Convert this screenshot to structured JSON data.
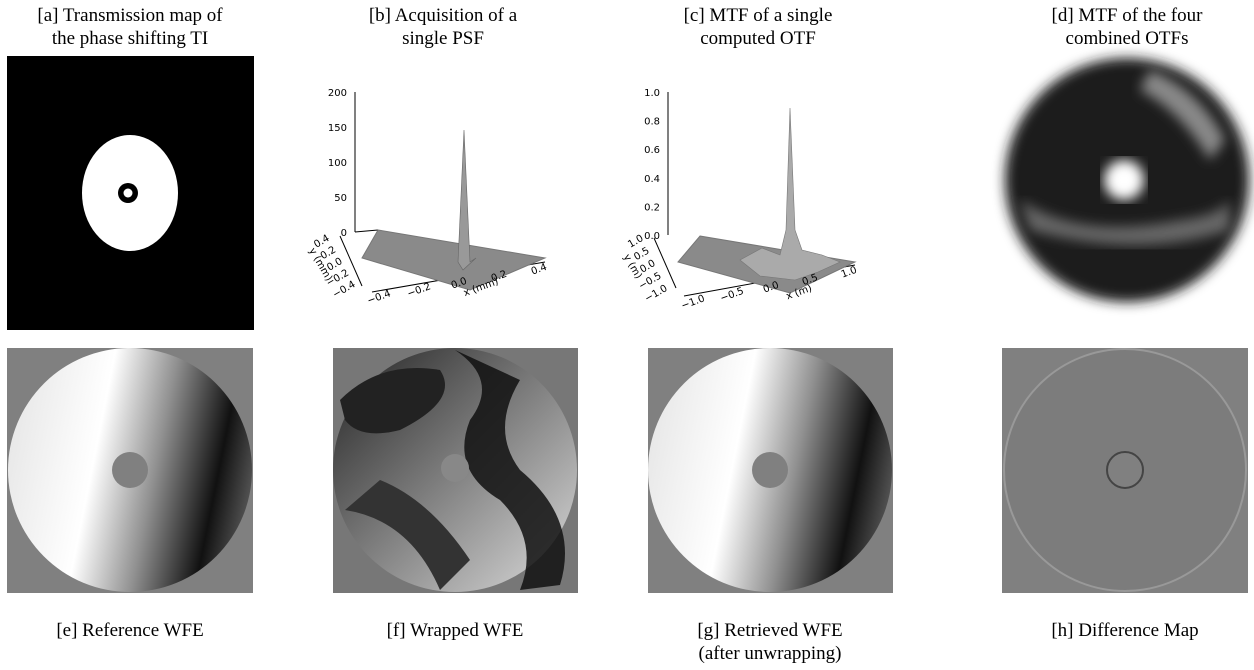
{
  "panels": [
    {
      "caption": [
        "[a] Transmission map of",
        "the phase shifting TI"
      ]
    },
    {
      "caption": [
        "[b] Acquisition of a",
        "single PSF"
      ],
      "plot": {
        "z_ticks": [
          "200",
          "150",
          "100",
          "50",
          "0"
        ],
        "y_ticks": [
          "0.4",
          "0.2",
          "0.0",
          "−0.2",
          "−0.4"
        ],
        "x_ticks": [
          "−0.4",
          "−0.2",
          "0.0",
          "0.2",
          "0.4"
        ],
        "x_label": "x (mm)",
        "y_label": "y (mm)"
      }
    },
    {
      "caption": [
        "[c] MTF of a single",
        "computed OTF"
      ],
      "plot": {
        "z_ticks": [
          "1.0",
          "0.8",
          "0.6",
          "0.4",
          "0.2",
          "0.0"
        ],
        "y_ticks": [
          "1.0",
          "0.5",
          "0.0",
          "−0.5",
          "−1.0"
        ],
        "x_ticks": [
          "−1.0",
          "−0.5",
          "0.0",
          "0.5",
          "1.0"
        ],
        "x_label": "x (m)",
        "y_label": "y (m)"
      }
    },
    {
      "caption": [
        "[d] MTF of the four",
        "combined OTFs"
      ]
    },
    {
      "caption": [
        "[e] Reference WFE"
      ]
    },
    {
      "caption": [
        "[f] Wrapped WFE"
      ]
    },
    {
      "caption": [
        "[g] Retrieved WFE",
        "(after unwrapping)"
      ]
    },
    {
      "caption": [
        "[h] Difference Map"
      ]
    }
  ]
}
